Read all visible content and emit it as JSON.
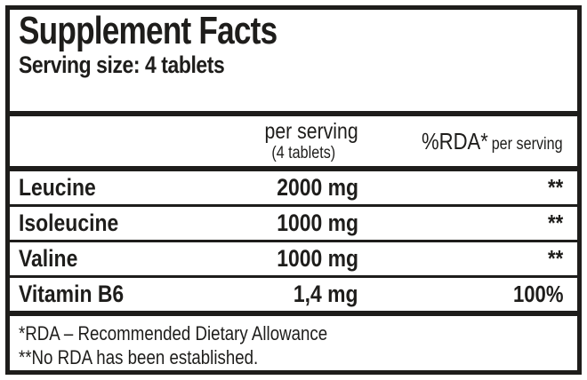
{
  "label": {
    "title": "Supplement Facts",
    "serving_size": "Serving size: 4 tablets",
    "header": {
      "amount_line1": "per serving",
      "amount_line2": "(4 tablets)",
      "rda_main": "%RDA*",
      "rda_sub": "per serving"
    },
    "rows": [
      {
        "name": "Leucine",
        "amount": "2000 mg",
        "rda": "**"
      },
      {
        "name": "Isoleucine",
        "amount": "1000 mg",
        "rda": "**"
      },
      {
        "name": "Valine",
        "amount": "1000 mg",
        "rda": "**"
      },
      {
        "name": "Vitamin B6",
        "amount": "1,4 mg",
        "rda": "100%"
      }
    ],
    "footnotes": [
      "*RDA – Recommended Dietary Allowance",
      "**No RDA has been established."
    ],
    "colors": {
      "ink": "#1e1d1b",
      "background": "#ffffff"
    }
  }
}
